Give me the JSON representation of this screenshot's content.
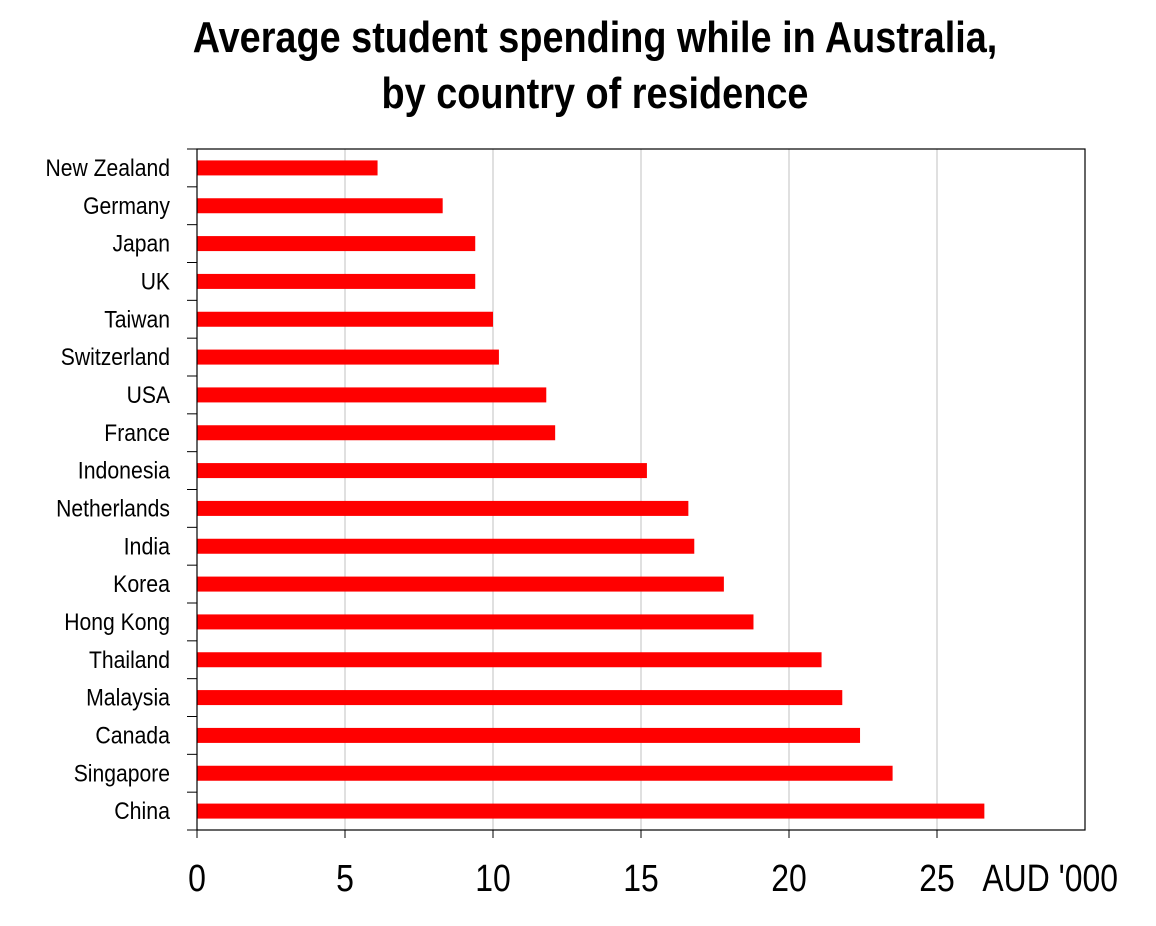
{
  "chart_data": {
    "type": "bar",
    "orientation": "horizontal",
    "title_lines": [
      "Average student spending while in Australia,",
      "by country of residence"
    ],
    "categories": [
      "New Zealand",
      "Germany",
      "Japan",
      "UK",
      "Taiwan",
      "Switzerland",
      "USA",
      "France",
      "Indonesia",
      "Netherlands",
      "India",
      "Korea",
      "Hong Kong",
      "Thailand",
      "Malaysia",
      "Canada",
      "Singapore",
      "China"
    ],
    "values": [
      6.1,
      8.3,
      9.4,
      9.4,
      10.0,
      10.2,
      11.8,
      12.1,
      15.2,
      16.6,
      16.8,
      17.8,
      18.8,
      21.1,
      21.8,
      22.4,
      23.5,
      26.6
    ],
    "xlim": [
      0,
      30
    ],
    "xticks": [
      0,
      5,
      10,
      15,
      20,
      25
    ],
    "xtick_labels": [
      "0",
      "5",
      "10",
      "15",
      "20",
      "25"
    ],
    "unit_label": "AUD '000",
    "grid": "vertical",
    "bar_color": "#ff0000",
    "gridline_color": "#c0c0c0",
    "legend": "none"
  }
}
